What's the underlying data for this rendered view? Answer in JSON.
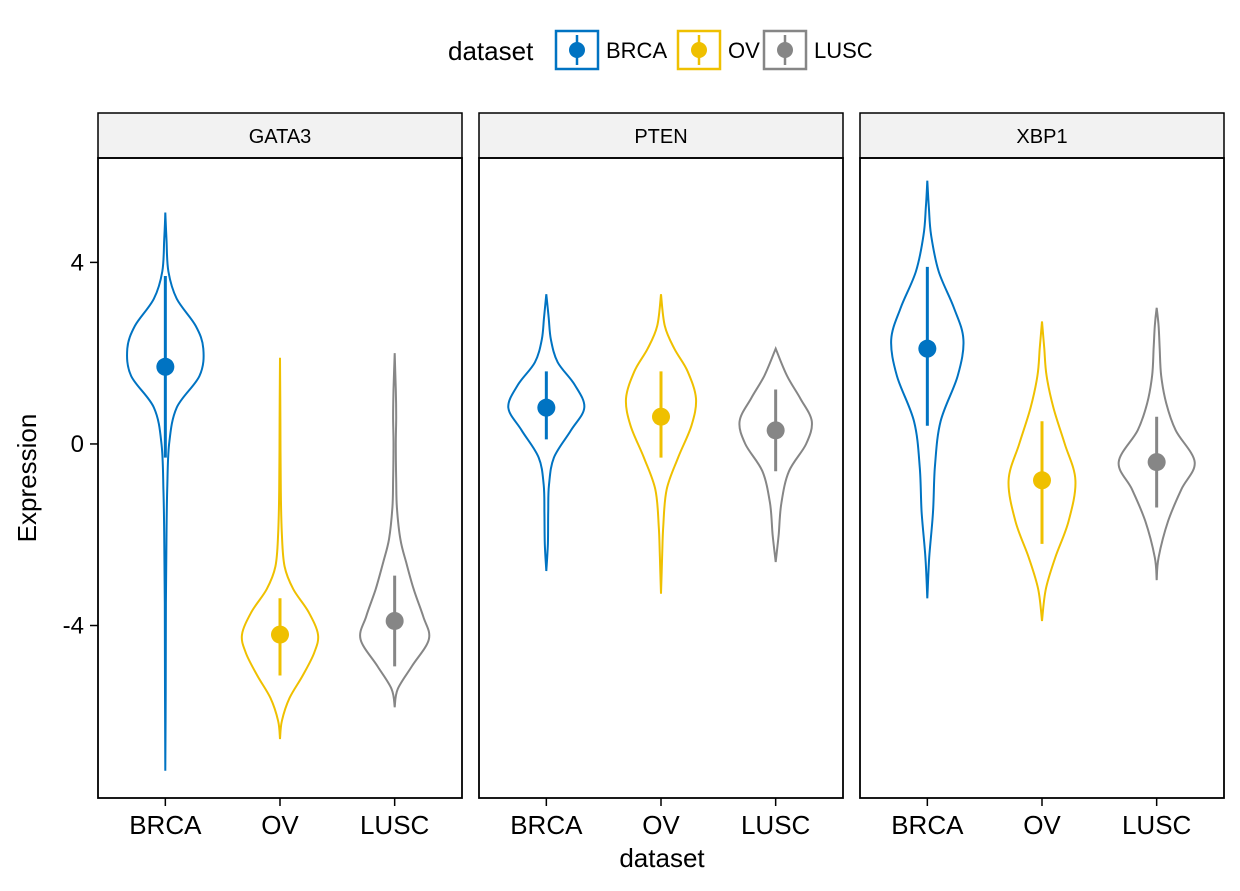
{
  "chart_data": {
    "type": "violin",
    "xlabel": "dataset",
    "ylabel": "Expression",
    "ylim": [
      -7.8,
      6.3
    ],
    "y_ticks": [
      -4,
      0,
      4
    ],
    "y_tick_labels": [
      "-4",
      "0",
      "4"
    ],
    "grid": false,
    "legend": {
      "title": "dataset",
      "position": "top",
      "entries": [
        "BRCA",
        "OV",
        "LUSC"
      ]
    },
    "colors": {
      "BRCA": "#0073C2",
      "OV": "#EFC000",
      "LUSC": "#868686"
    },
    "categories": [
      "BRCA",
      "OV",
      "LUSC"
    ],
    "panels": [
      {
        "title": "GATA3",
        "groups": [
          {
            "name": "BRCA",
            "mean": 1.7,
            "sd_low": -0.3,
            "sd_high": 3.7,
            "min": -7.2,
            "max": 5.1,
            "profile": [
              [
                -7.2,
                0.0
              ],
              [
                -5.5,
                0.01
              ],
              [
                -3.5,
                0.015
              ],
              [
                -2,
                0.03
              ],
              [
                -1,
                0.05
              ],
              [
                0,
                0.1
              ],
              [
                0.8,
                0.3
              ],
              [
                1.5,
                0.9
              ],
              [
                2.1,
                1.0
              ],
              [
                2.6,
                0.8
              ],
              [
                3.2,
                0.3
              ],
              [
                3.8,
                0.08
              ],
              [
                4.5,
                0.03
              ],
              [
                5.1,
                0.0
              ]
            ]
          },
          {
            "name": "OV",
            "mean": -4.2,
            "sd_low": -5.1,
            "sd_high": -3.4,
            "min": -6.5,
            "max": 1.9,
            "profile": [
              [
                -6.5,
                0.0
              ],
              [
                -6.1,
                0.05
              ],
              [
                -5.6,
                0.25
              ],
              [
                -5.1,
                0.6
              ],
              [
                -4.6,
                0.9
              ],
              [
                -4.2,
                1.0
              ],
              [
                -3.7,
                0.75
              ],
              [
                -3.2,
                0.35
              ],
              [
                -2.7,
                0.12
              ],
              [
                -2,
                0.05
              ],
              [
                -1,
                0.02
              ],
              [
                0.5,
                0.01
              ],
              [
                1.9,
                0.0
              ]
            ]
          },
          {
            "name": "LUSC",
            "mean": -3.9,
            "sd_low": -4.9,
            "sd_high": -2.9,
            "min": -5.8,
            "max": 2.0,
            "profile": [
              [
                -5.8,
                0.0
              ],
              [
                -5.4,
                0.08
              ],
              [
                -4.9,
                0.45
              ],
              [
                -4.3,
                0.9
              ],
              [
                -3.8,
                0.75
              ],
              [
                -3.2,
                0.5
              ],
              [
                -2.6,
                0.3
              ],
              [
                -2.1,
                0.15
              ],
              [
                -1.4,
                0.06
              ],
              [
                -0.8,
                0.04
              ],
              [
                0,
                0.03
              ],
              [
                0.6,
                0.04
              ],
              [
                1.2,
                0.03
              ],
              [
                2.0,
                0.0
              ]
            ]
          }
        ]
      },
      {
        "title": "PTEN",
        "groups": [
          {
            "name": "BRCA",
            "mean": 0.8,
            "sd_low": 0.1,
            "sd_high": 1.6,
            "min": -2.8,
            "max": 3.3,
            "profile": [
              [
                -2.8,
                0.0
              ],
              [
                -2.2,
                0.04
              ],
              [
                -1.5,
                0.05
              ],
              [
                -0.9,
                0.07
              ],
              [
                -0.3,
                0.2
              ],
              [
                0.3,
                0.65
              ],
              [
                0.8,
                1.0
              ],
              [
                1.3,
                0.75
              ],
              [
                1.8,
                0.3
              ],
              [
                2.3,
                0.12
              ],
              [
                2.8,
                0.06
              ],
              [
                3.3,
                0.0
              ]
            ]
          },
          {
            "name": "OV",
            "mean": 0.6,
            "sd_low": -0.3,
            "sd_high": 1.6,
            "min": -3.3,
            "max": 3.3,
            "profile": [
              [
                -3.3,
                0.0
              ],
              [
                -2.5,
                0.03
              ],
              [
                -1.8,
                0.06
              ],
              [
                -1,
                0.15
              ],
              [
                -0.3,
                0.45
              ],
              [
                0.4,
                0.8
              ],
              [
                1,
                0.92
              ],
              [
                1.6,
                0.7
              ],
              [
                2.1,
                0.35
              ],
              [
                2.6,
                0.1
              ],
              [
                3.3,
                0.0
              ]
            ]
          },
          {
            "name": "LUSC",
            "mean": 0.3,
            "sd_low": -0.6,
            "sd_high": 1.2,
            "min": -2.6,
            "max": 2.1,
            "profile": [
              [
                -2.6,
                0.0
              ],
              [
                -2,
                0.08
              ],
              [
                -1.3,
                0.15
              ],
              [
                -0.6,
                0.35
              ],
              [
                0,
                0.8
              ],
              [
                0.5,
                0.95
              ],
              [
                1,
                0.65
              ],
              [
                1.5,
                0.3
              ],
              [
                2.1,
                0.0
              ]
            ]
          }
        ]
      },
      {
        "title": "XBP1",
        "groups": [
          {
            "name": "BRCA",
            "mean": 2.1,
            "sd_low": 0.4,
            "sd_high": 3.9,
            "min": -3.4,
            "max": 5.8,
            "profile": [
              [
                -3.4,
                0.0
              ],
              [
                -2.5,
                0.05
              ],
              [
                -1.5,
                0.15
              ],
              [
                -0.5,
                0.2
              ],
              [
                0.5,
                0.35
              ],
              [
                1.5,
                0.8
              ],
              [
                2.3,
                0.95
              ],
              [
                3,
                0.7
              ],
              [
                3.8,
                0.3
              ],
              [
                4.6,
                0.1
              ],
              [
                5.2,
                0.04
              ],
              [
                5.8,
                0.0
              ]
            ]
          },
          {
            "name": "OV",
            "mean": -0.8,
            "sd_low": -2.2,
            "sd_high": 0.5,
            "min": -3.9,
            "max": 2.7,
            "profile": [
              [
                -3.9,
                0.0
              ],
              [
                -3.2,
                0.1
              ],
              [
                -2.5,
                0.35
              ],
              [
                -1.7,
                0.7
              ],
              [
                -0.8,
                0.88
              ],
              [
                0,
                0.6
              ],
              [
                0.8,
                0.3
              ],
              [
                1.5,
                0.12
              ],
              [
                2.1,
                0.06
              ],
              [
                2.7,
                0.0
              ]
            ]
          },
          {
            "name": "LUSC",
            "mean": -0.4,
            "sd_low": -1.4,
            "sd_high": 0.6,
            "min": -3.0,
            "max": 3.0,
            "profile": [
              [
                -3.0,
                0.0
              ],
              [
                -2.5,
                0.05
              ],
              [
                -1.7,
                0.3
              ],
              [
                -1,
                0.65
              ],
              [
                -0.4,
                1.0
              ],
              [
                0.3,
                0.5
              ],
              [
                0.9,
                0.25
              ],
              [
                1.5,
                0.12
              ],
              [
                2.1,
                0.08
              ],
              [
                2.6,
                0.05
              ],
              [
                3.0,
                0.0
              ]
            ]
          }
        ]
      }
    ]
  }
}
